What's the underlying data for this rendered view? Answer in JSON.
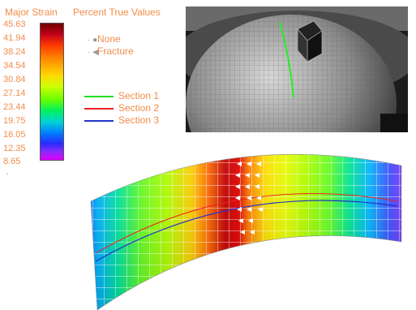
{
  "legend": {
    "title": "Major Strain",
    "mode": "Percent True Values",
    "ticks": [
      "45.63",
      "41.94",
      "38.24",
      "34.54",
      "30.84",
      "27.14",
      "23.44",
      "19.75",
      "16.05",
      "12.35",
      "8.65"
    ],
    "markers": [
      {
        "label": "None",
        "symbol": "circle-icon"
      },
      {
        "label": "Fracture",
        "symbol": "triangle-left-icon"
      }
    ],
    "sections": [
      {
        "label": "Section 1",
        "color": "#22dd22"
      },
      {
        "label": "Section 2",
        "color": "#ee2222"
      },
      {
        "label": "Section 3",
        "color": "#2233cc"
      }
    ],
    "label_color": "#f28c4a"
  },
  "small_mark": "'"
}
